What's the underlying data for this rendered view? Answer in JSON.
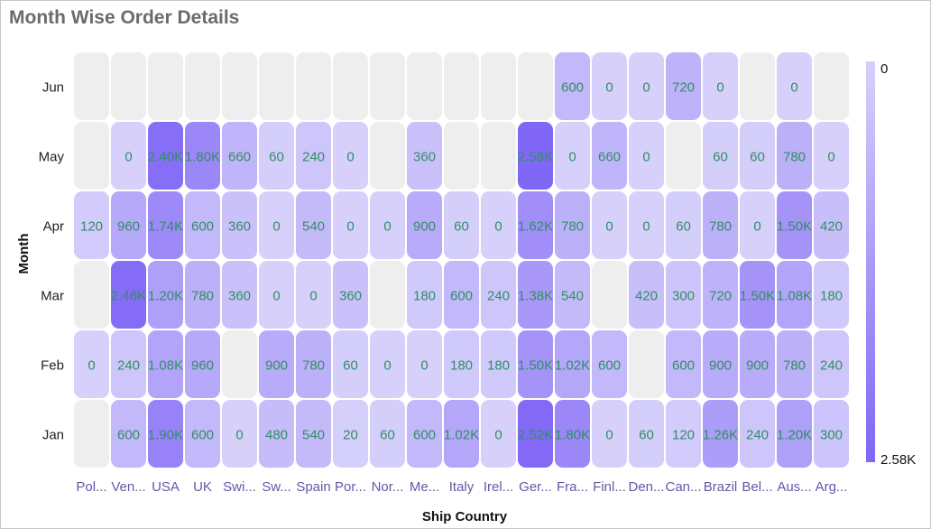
{
  "chart_data": {
    "type": "heatmap",
    "title": "Month Wise Order Details",
    "xlabel": "Ship Country",
    "ylabel": "Month",
    "categories": [
      "Pol...",
      "Ven...",
      "USA",
      "UK",
      "Swi...",
      "Sw...",
      "Spain",
      "Por...",
      "Nor...",
      "Me...",
      "Italy",
      "Irel...",
      "Ger...",
      "Fra...",
      "Finl...",
      "Den...",
      "Can...",
      "Brazil",
      "Bel...",
      "Aus...",
      "Arg..."
    ],
    "months": [
      "Jun",
      "May",
      "Apr",
      "Mar",
      "Feb",
      "Jan"
    ],
    "values": [
      [
        null,
        null,
        null,
        null,
        null,
        null,
        null,
        null,
        null,
        null,
        null,
        null,
        null,
        600,
        0,
        0,
        720,
        0,
        null,
        0,
        null
      ],
      [
        null,
        0,
        2400,
        1800,
        660,
        60,
        240,
        0,
        null,
        360,
        null,
        null,
        2580,
        0,
        660,
        0,
        null,
        60,
        60,
        780,
        0
      ],
      [
        120,
        960,
        1740,
        600,
        360,
        0,
        540,
        0,
        0,
        900,
        60,
        0,
        1620,
        780,
        0,
        0,
        60,
        780,
        0,
        1500,
        420
      ],
      [
        null,
        2460,
        1200,
        780,
        360,
        0,
        0,
        360,
        null,
        180,
        600,
        240,
        1380,
        540,
        null,
        420,
        300,
        720,
        1500,
        1080,
        180
      ],
      [
        0,
        240,
        1080,
        960,
        null,
        900,
        780,
        60,
        0,
        0,
        180,
        180,
        1500,
        1020,
        600,
        null,
        600,
        900,
        900,
        780,
        240
      ],
      [
        null,
        600,
        1900,
        600,
        0,
        480,
        540,
        20,
        60,
        600,
        1020,
        0,
        2520,
        1800,
        0,
        60,
        120,
        1260,
        240,
        1200,
        300
      ]
    ],
    "labels": [
      [
        "",
        "",
        "",
        "",
        "",
        "",
        "",
        "",
        "",
        "",
        "",
        "",
        "",
        "600",
        "0",
        "0",
        "720",
        "0",
        "",
        "0",
        ""
      ],
      [
        "",
        "0",
        "2.40K",
        "1.80K",
        "660",
        "60",
        "240",
        "0",
        "",
        "360",
        "",
        "",
        "2.58K",
        "0",
        "660",
        "0",
        "",
        "60",
        "60",
        "780",
        "0"
      ],
      [
        "120",
        "960",
        "1.74K",
        "600",
        "360",
        "0",
        "540",
        "0",
        "0",
        "900",
        "60",
        "0",
        "1.62K",
        "780",
        "0",
        "0",
        "60",
        "780",
        "0",
        "1.50K",
        "420"
      ],
      [
        "",
        "2.46K",
        "1.20K",
        "780",
        "360",
        "0",
        "0",
        "360",
        "",
        "180",
        "600",
        "240",
        "1.38K",
        "540",
        "",
        "420",
        "300",
        "720",
        "1.50K",
        "1.08K",
        "180"
      ],
      [
        "0",
        "240",
        "1.08K",
        "960",
        "",
        "900",
        "780",
        "60",
        "0",
        "0",
        "180",
        "180",
        "1.50K",
        "1.02K",
        "600",
        "",
        "600",
        "900",
        "900",
        "780",
        "240"
      ],
      [
        "",
        "600",
        "1.90K",
        "600",
        "0",
        "480",
        "540",
        "20",
        "60",
        "600",
        "1.02K",
        "0",
        "2.52K",
        "1.80K",
        "0",
        "60",
        "120",
        "1.26K",
        "240",
        "1.20K",
        "300"
      ]
    ],
    "value_range": [
      0,
      2580
    ],
    "legend": {
      "min_label": "0",
      "max_label": "2.58K",
      "position": "right"
    },
    "colors": {
      "low": "#d6d0fb",
      "high": "#8167f6",
      "empty": "#eeeeee",
      "label": "#2f8f63"
    }
  }
}
